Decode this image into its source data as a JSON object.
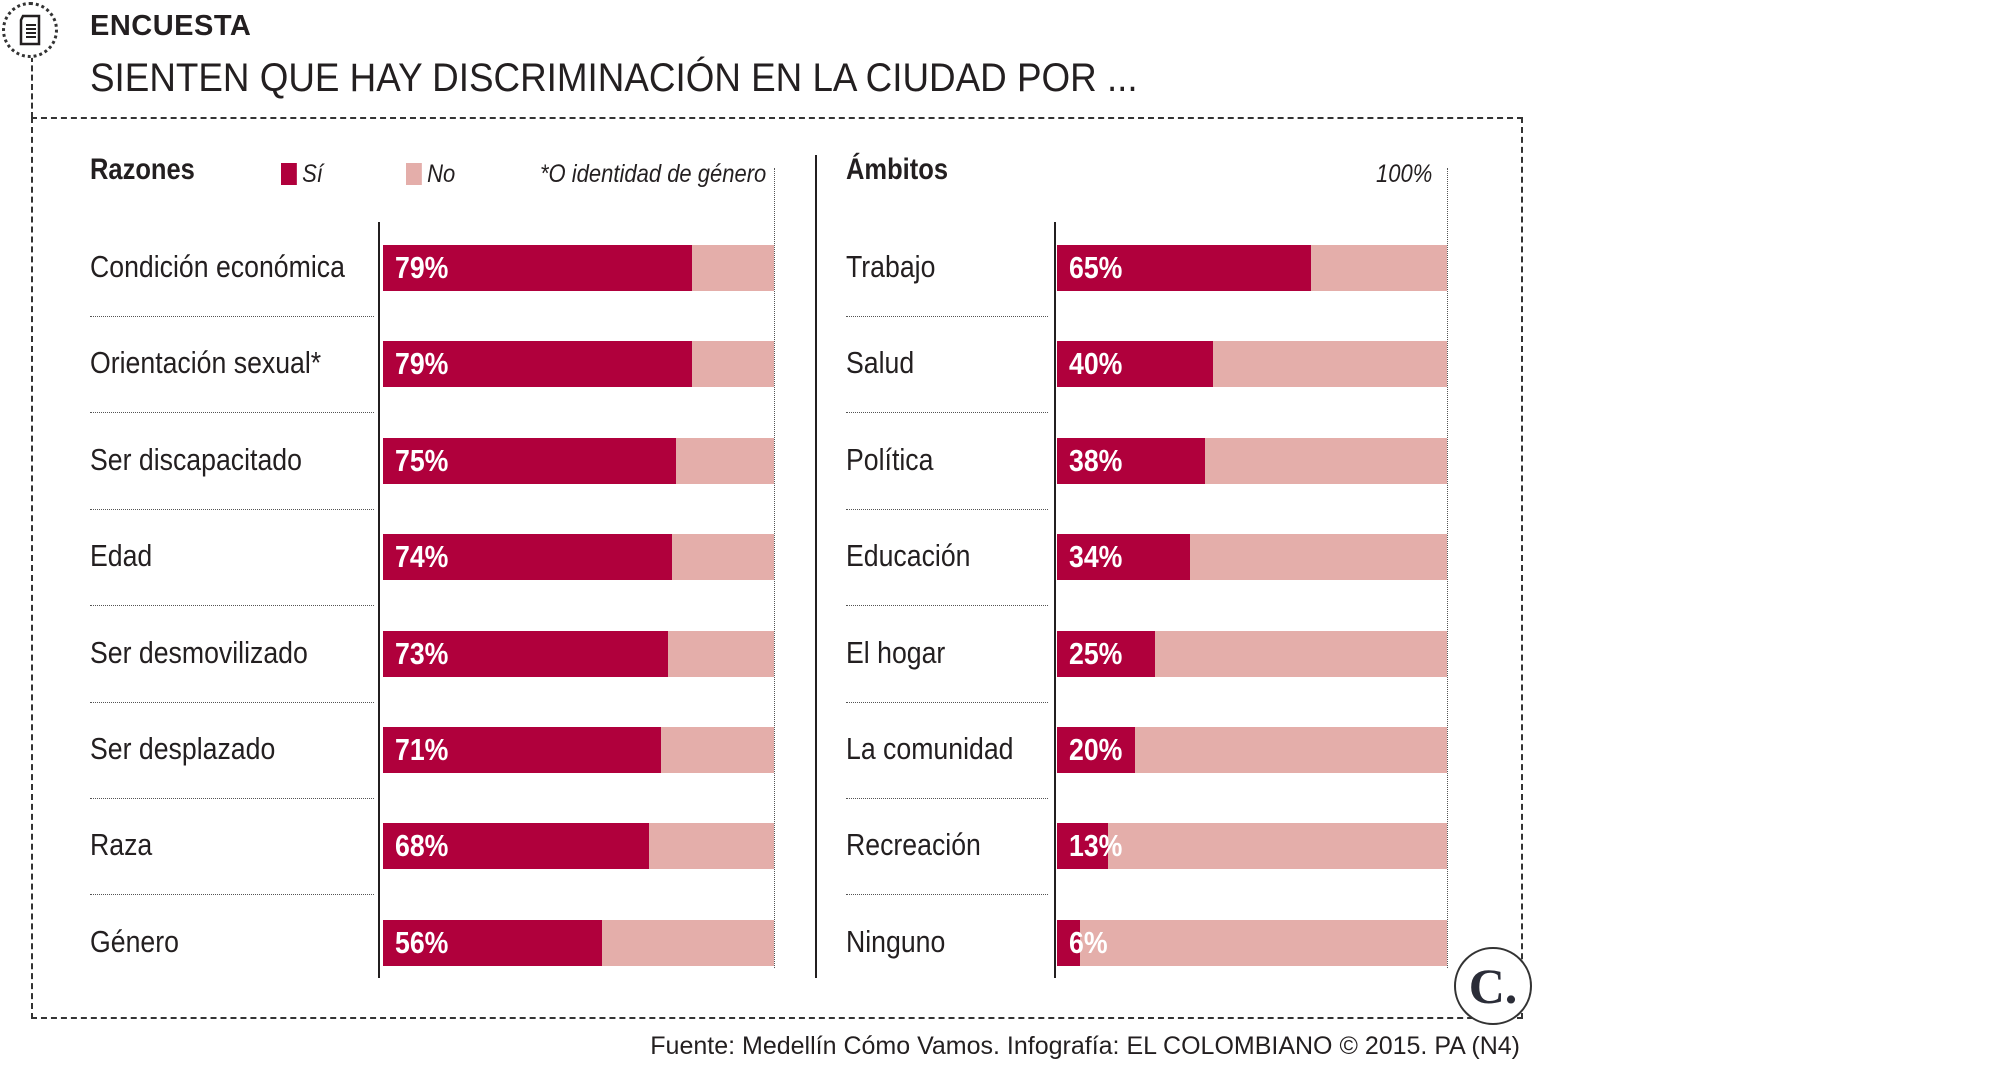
{
  "header": {
    "kicker": "ENCUESTA",
    "title": "SIENTEN QUE HAY DISCRIMINACIÓN EN LA CIUDAD POR ..."
  },
  "colors": {
    "si": "#b0003c",
    "no": "#e4aeaa"
  },
  "chart_data": [
    {
      "type": "bar",
      "orientation": "horizontal",
      "stacked": true,
      "title": "Razones",
      "legend": [
        {
          "name": "Sí",
          "color": "#b0003c"
        },
        {
          "name": "No",
          "color": "#e4aeaa"
        }
      ],
      "note": "*O identidad de género",
      "categories": [
        "Condición económica",
        "Orientación sexual*",
        "Ser discapacitado",
        "Edad",
        "Ser desmovilizado",
        "Ser desplazado",
        "Raza",
        "Género"
      ],
      "values": [
        79,
        79,
        75,
        74,
        73,
        71,
        68,
        56
      ],
      "labels": [
        "79%",
        "79%",
        "75%",
        "74%",
        "73%",
        "71%",
        "68%",
        "56%"
      ],
      "xlim": [
        0,
        100
      ]
    },
    {
      "type": "bar",
      "orientation": "horizontal",
      "stacked": true,
      "title": "Ámbitos",
      "max_label": "100%",
      "categories": [
        "Trabajo",
        "Salud",
        "Política",
        "Educación",
        "El hogar",
        "La comunidad",
        "Recreación",
        "Ninguno"
      ],
      "values": [
        65,
        40,
        38,
        34,
        25,
        20,
        13,
        6
      ],
      "labels": [
        "65%",
        "40%",
        "38%",
        "34%",
        "25%",
        "20%",
        "13%",
        "6%"
      ],
      "xlim": [
        0,
        100
      ]
    }
  ],
  "footer": {
    "source": "Fuente: Medellín Cómo Vamos. Infografía: EL COLOMBIANO © 2015. PA (N4)",
    "logo": "C."
  }
}
